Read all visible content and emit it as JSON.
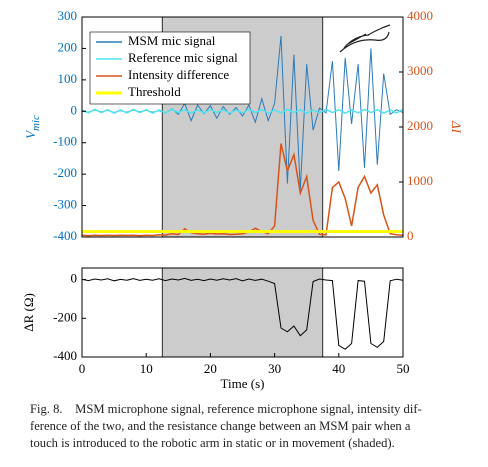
{
  "chart_data": [
    {
      "type": "line",
      "ylabel": [
        "V",
        "mic"
      ],
      "y2label": "ΔI",
      "ycolor": "#0072bd",
      "y2color": "#d95319",
      "xlim": [
        0,
        50
      ],
      "ylim": [
        -400,
        300
      ],
      "yticks": [
        -400,
        -300,
        -200,
        -100,
        0,
        100,
        200,
        300
      ],
      "y2lim": [
        0,
        4000
      ],
      "y2ticks": [
        0,
        1000,
        2000,
        3000,
        4000
      ],
      "shaded": [
        12.5,
        37.5
      ],
      "shade_color": "#cccccc",
      "legend": "upper left",
      "x": [
        0,
        1,
        2,
        3,
        4,
        5,
        6,
        7,
        8,
        9,
        10,
        11,
        12,
        13,
        14,
        15,
        16,
        17,
        18,
        19,
        20,
        21,
        22,
        23,
        24,
        25,
        26,
        27,
        28,
        29,
        30,
        31,
        32,
        33,
        34,
        35,
        36,
        37,
        38,
        39,
        40,
        41,
        42,
        43,
        44,
        45,
        46,
        47,
        48,
        49,
        50
      ],
      "series": [
        {
          "name": "MSM mic signal",
          "color": "#2b7bba",
          "width": 1,
          "values": [
            2,
            -3,
            4,
            -2,
            3,
            -4,
            2,
            -3,
            4,
            -2,
            3,
            -3,
            2,
            -5,
            8,
            -10,
            25,
            -30,
            20,
            -8,
            18,
            -22,
            15,
            -10,
            12,
            -15,
            20,
            -35,
            40,
            -30,
            25,
            240,
            -230,
            180,
            -250,
            150,
            -60,
            10,
            -5,
            160,
            -190,
            170,
            -40,
            150,
            -180,
            200,
            -170,
            120,
            -10,
            5,
            -4
          ]
        },
        {
          "name": "Reference mic signal",
          "color": "#4fe3f0",
          "width": 1.5,
          "values": [
            4,
            -5,
            6,
            -4,
            5,
            -6,
            4,
            -5,
            6,
            -4,
            5,
            -6,
            4,
            -5,
            6,
            -4,
            5,
            -6,
            4,
            -5,
            6,
            -4,
            5,
            -6,
            4,
            -5,
            6,
            -4,
            5,
            -6,
            4,
            -5,
            6,
            -4,
            5,
            -6,
            4,
            -5,
            6,
            -4,
            5,
            -6,
            4,
            -5,
            6,
            -4,
            5,
            -6,
            4,
            -5,
            6
          ]
        },
        {
          "name": "Intensity difference",
          "color": "#d95319",
          "width": 1.5,
          "axis": "y2",
          "values": [
            30,
            25,
            30,
            28,
            32,
            27,
            30,
            29,
            31,
            26,
            30,
            28,
            40,
            35,
            60,
            45,
            150,
            80,
            60,
            50,
            70,
            55,
            60,
            45,
            50,
            60,
            90,
            160,
            100,
            60,
            200,
            1700,
            1200,
            1500,
            800,
            1100,
            300,
            50,
            40,
            900,
            1000,
            700,
            200,
            900,
            1100,
            800,
            950,
            400,
            60,
            40,
            30
          ]
        },
        {
          "name": "Threshold",
          "color": "#ffff00",
          "width": 3,
          "axis": "y2",
          "x": [
            0,
            50
          ],
          "values": [
            100,
            100
          ]
        }
      ]
    },
    {
      "type": "line",
      "ylabel": "ΔR (Ω)",
      "xlabel": "Time (s)",
      "xlim": [
        0,
        50
      ],
      "xticks": [
        0,
        10,
        20,
        30,
        40,
        50
      ],
      "ylim": [
        -400,
        60
      ],
      "yticks": [
        -400,
        -200,
        0
      ],
      "shaded": [
        12.5,
        37.5
      ],
      "shade_color": "#cccccc",
      "x": [
        0,
        1,
        2,
        3,
        4,
        5,
        6,
        7,
        8,
        9,
        10,
        11,
        12,
        13,
        14,
        15,
        16,
        17,
        18,
        19,
        20,
        21,
        22,
        23,
        24,
        25,
        26,
        27,
        28,
        29,
        30,
        31,
        32,
        33,
        34,
        35,
        36,
        37,
        38,
        39,
        40,
        41,
        42,
        43,
        44,
        45,
        46,
        47,
        48,
        49,
        50
      ],
      "series": [
        {
          "color": "#000000",
          "width": 1,
          "values": [
            2,
            -5,
            3,
            -2,
            4,
            -6,
            1,
            -3,
            5,
            -4,
            2,
            -3,
            4,
            -5,
            3,
            -2,
            6,
            -4,
            2,
            -5,
            3,
            -3,
            4,
            -2,
            5,
            -6,
            3,
            -4,
            2,
            -8,
            -20,
            -250,
            -270,
            -240,
            -290,
            -260,
            -10,
            3,
            -2,
            -5,
            -340,
            -360,
            -330,
            -5,
            -8,
            -330,
            -350,
            -320,
            -6,
            2,
            -3
          ]
        }
      ]
    }
  ],
  "caption": [
    "Fig. 8.    MSM microphone signal, reference microphone signal, intensity dif-",
    "ference of the two, and the resistance change between an MSM pair when a",
    "touch is introduced to the robotic arm in static or in movement (shaded)."
  ]
}
